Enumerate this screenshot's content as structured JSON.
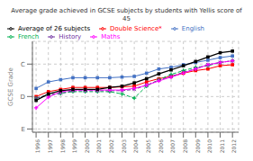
{
  "chart_data": {
    "type": "line",
    "title": "Average grade achieved in GCSE subjects by students with Yellis score of 45",
    "ylabel": "GCSE Grade",
    "x": [
      1996,
      1997,
      1998,
      1999,
      2000,
      2001,
      2002,
      2003,
      2004,
      2005,
      2006,
      2007,
      2008,
      2009,
      2010,
      2011,
      2012
    ],
    "series": [
      {
        "name": "Double Science*",
        "color": "#ff0000",
        "marker": "square",
        "line_style": "solid",
        "values": [
          3.0,
          2.85,
          2.78,
          2.72,
          2.72,
          2.72,
          2.72,
          2.7,
          2.68,
          2.55,
          2.45,
          2.38,
          2.28,
          2.2,
          2.15,
          2.05,
          2.02
        ]
      },
      {
        "name": "English",
        "color": "#4472c4",
        "marker": "square",
        "line_style": "solid",
        "values": [
          2.75,
          2.55,
          2.48,
          2.42,
          2.42,
          2.42,
          2.42,
          2.4,
          2.38,
          2.28,
          2.15,
          2.1,
          2.02,
          1.95,
          1.88,
          1.8,
          1.75
        ]
      },
      {
        "name": "French",
        "color": "#00b050",
        "marker": "plus",
        "line_style": "dashed",
        "values": [
          3.05,
          2.95,
          2.9,
          2.85,
          2.85,
          2.85,
          2.85,
          2.92,
          3.05,
          2.68,
          2.48,
          2.32,
          2.2,
          2.1,
          2.05,
          1.95,
          1.9
        ]
      },
      {
        "name": "History",
        "color": "#7030a0",
        "marker": "x",
        "line_style": "dashed",
        "values": [
          3.05,
          2.95,
          2.9,
          2.82,
          2.82,
          2.82,
          2.82,
          2.82,
          2.78,
          2.65,
          2.5,
          2.38,
          2.25,
          2.15,
          2.02,
          1.95,
          1.9
        ]
      },
      {
        "name": "Maths",
        "color": "#ff00ff",
        "marker": "plus",
        "line_style": "solid",
        "values": [
          3.35,
          3.02,
          2.85,
          2.8,
          2.8,
          2.8,
          2.8,
          2.8,
          2.75,
          2.65,
          2.52,
          2.4,
          2.28,
          2.15,
          2.02,
          1.95,
          1.9
        ]
      },
      {
        "name": "Average of 26 subjects",
        "color": "#000000",
        "marker": "square",
        "line_style": "solid",
        "values": [
          3.12,
          2.92,
          2.82,
          2.78,
          2.78,
          2.78,
          2.72,
          2.68,
          2.58,
          2.45,
          2.3,
          2.18,
          2.05,
          1.92,
          1.78,
          1.65,
          1.6
        ]
      }
    ],
    "xlim": [
      1995.7,
      2012.5
    ],
    "xticks": [
      1996,
      1997,
      1998,
      1999,
      2000,
      2001,
      2002,
      2003,
      2004,
      2005,
      2006,
      2007,
      2008,
      2009,
      2010,
      2011,
      2012
    ],
    "ylim": [
      4.1,
      1.3
    ],
    "yticks": [
      {
        "value": 2.0,
        "label": "C"
      },
      {
        "value": 3.0,
        "label": "D"
      },
      {
        "value": 4.0,
        "label": "E"
      }
    ],
    "grid": true,
    "legend": "upper left"
  }
}
